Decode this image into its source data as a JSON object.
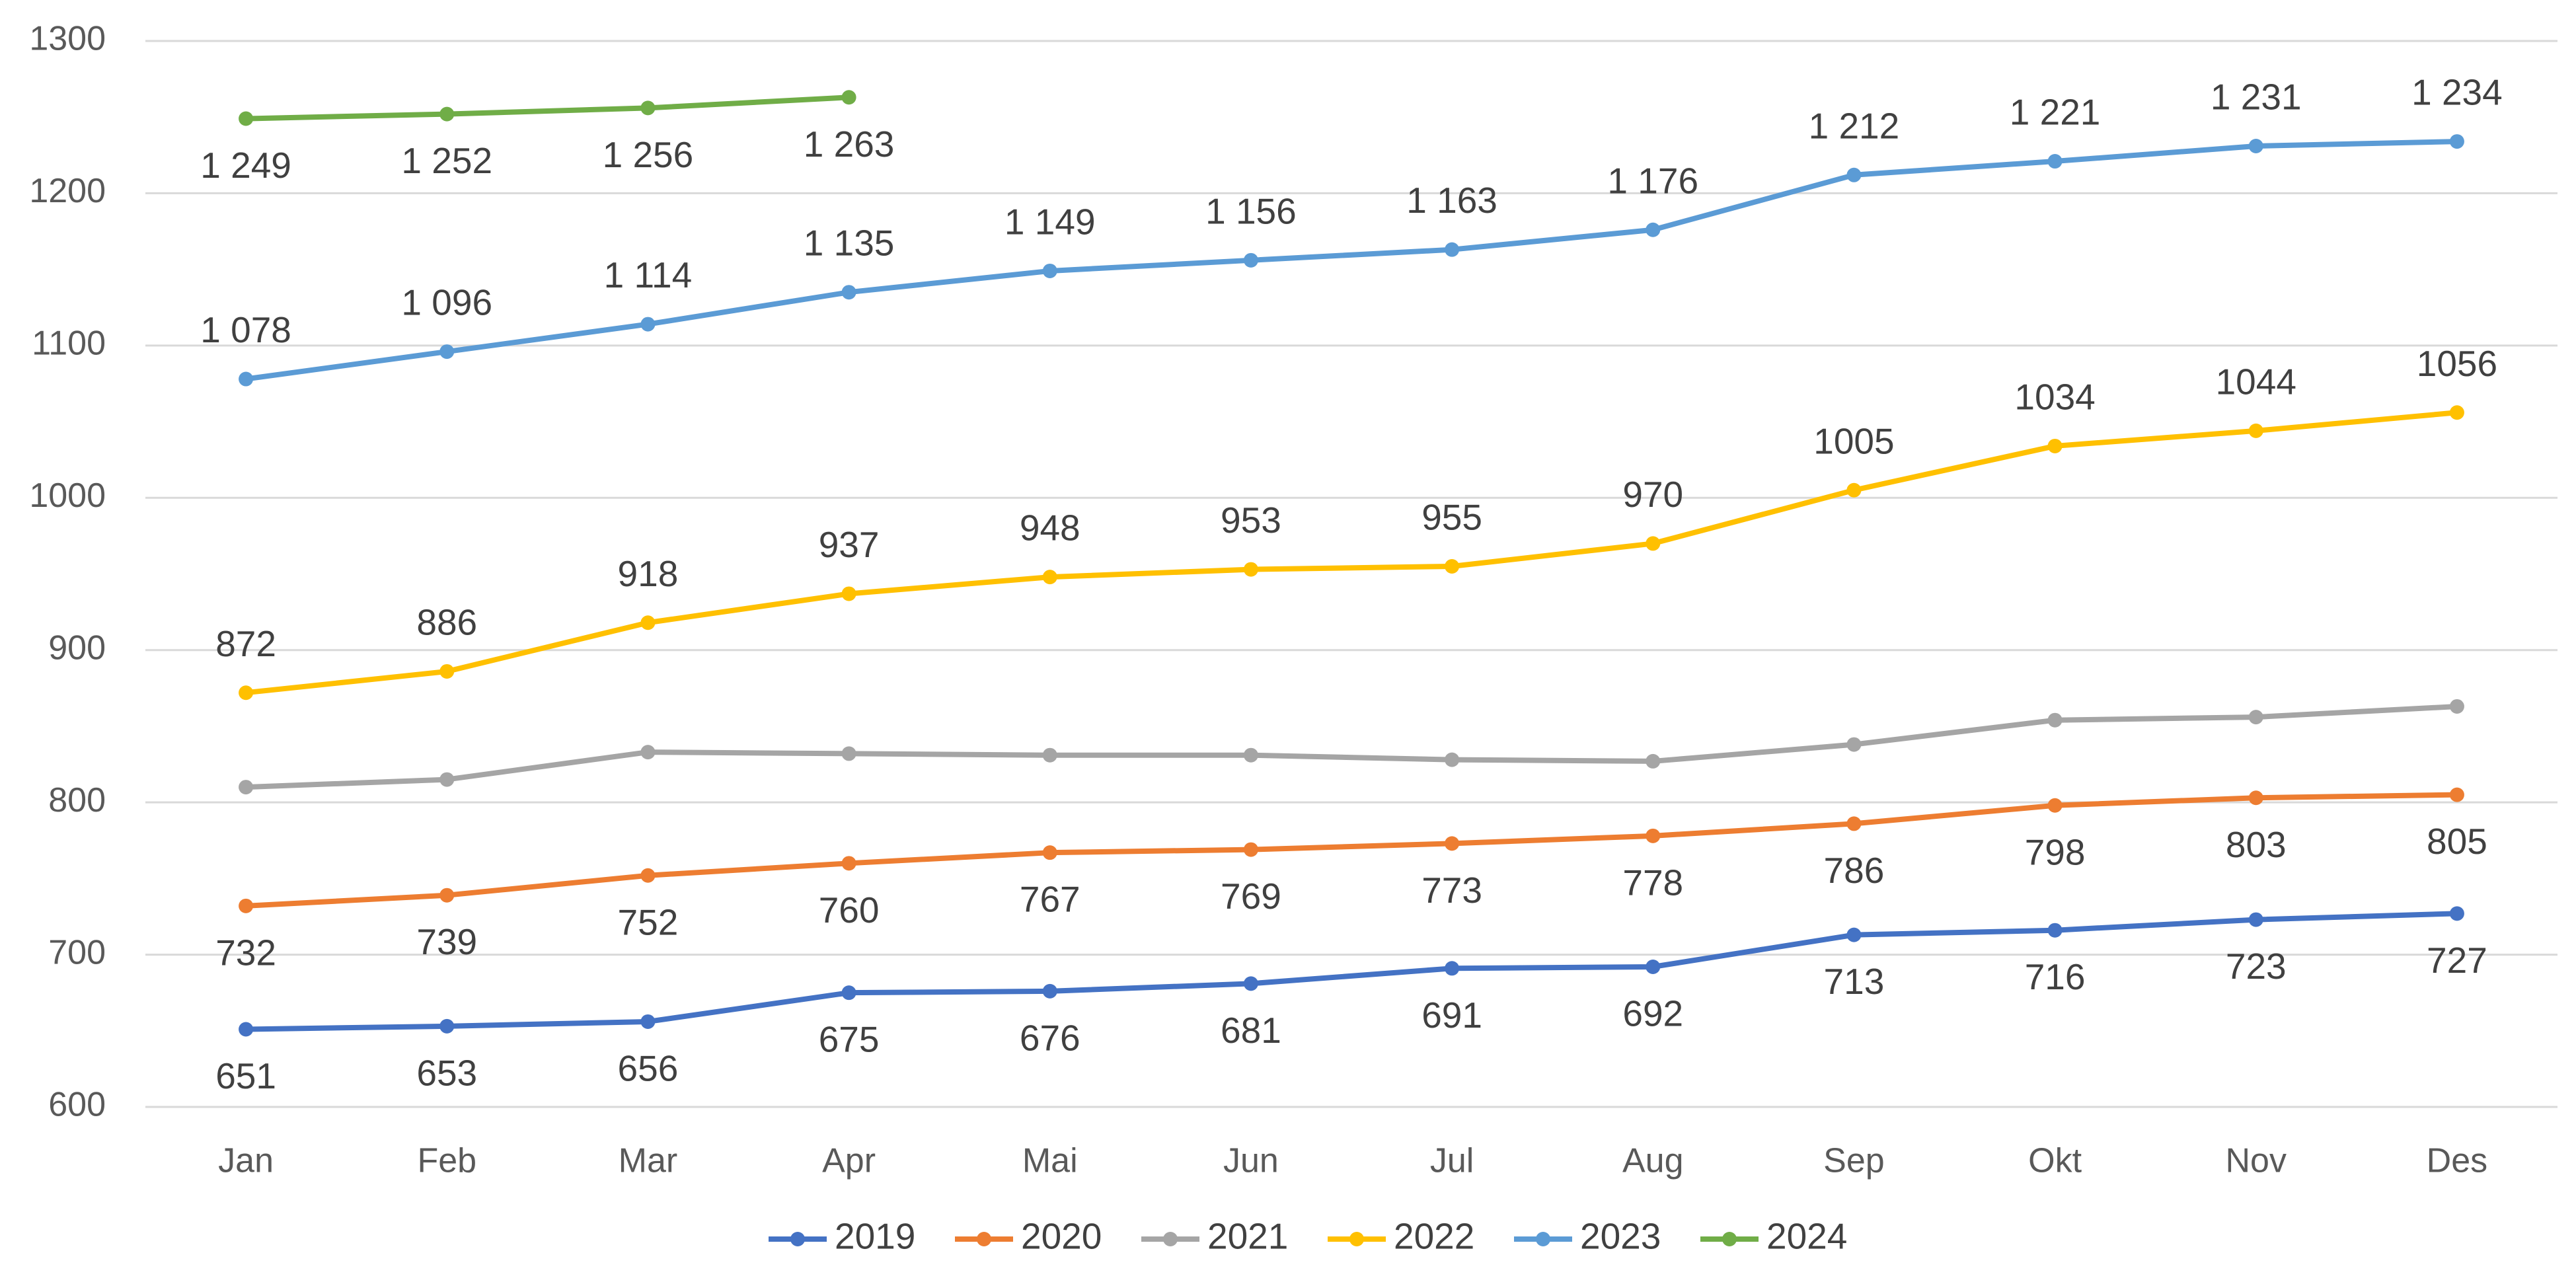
{
  "chart_data": {
    "type": "line",
    "categories": [
      "Jan",
      "Feb",
      "Mar",
      "Apr",
      "Mai",
      "Jun",
      "Jul",
      "Aug",
      "Sep",
      "Okt",
      "Nov",
      "Des"
    ],
    "ylim": [
      600,
      1300
    ],
    "yticks": [
      600,
      700,
      800,
      900,
      1000,
      1100,
      1200,
      1300
    ],
    "grid": true,
    "legend": "bottom",
    "series": [
      {
        "name": "2019",
        "color": "#4472c4",
        "data_labels": "below",
        "values": [
          651,
          653,
          656,
          675,
          676,
          681,
          691,
          692,
          713,
          716,
          723,
          727
        ]
      },
      {
        "name": "2020",
        "color": "#ed7d31",
        "data_labels": "below",
        "values": [
          732,
          739,
          752,
          760,
          767,
          769,
          773,
          778,
          786,
          798,
          803,
          805
        ]
      },
      {
        "name": "2021",
        "color": "#a5a5a5",
        "values": [
          810,
          815,
          833,
          832,
          831,
          831,
          828,
          827,
          838,
          854,
          856,
          863
        ]
      },
      {
        "name": "2022",
        "color": "#ffc000",
        "data_labels": "above",
        "values": [
          872,
          886,
          918,
          937,
          948,
          953,
          955,
          970,
          1005,
          1034,
          1044,
          1056
        ]
      },
      {
        "name": "2023",
        "color": "#5b9bd5",
        "data_labels": "above",
        "values": [
          1078,
          1096,
          1114,
          1135,
          1149,
          1156,
          1163,
          1176,
          1212,
          1221,
          1231,
          1234
        ],
        "value_labels": [
          "1 078",
          "1 096",
          "1 114",
          "1 135",
          "1 149",
          "1 156",
          "1 163",
          "1 176",
          "1 212",
          "1 221",
          "1 231",
          "1 234"
        ]
      },
      {
        "name": "2024",
        "color": "#70ad47",
        "data_labels": "below",
        "values": [
          1249,
          1252,
          1256,
          1263,
          null,
          null,
          null,
          null,
          null,
          null,
          null,
          null
        ],
        "value_labels": [
          "1 249",
          "1 252",
          "1 256",
          "1 263",
          null,
          null,
          null,
          null,
          null,
          null,
          null,
          null
        ]
      }
    ]
  }
}
